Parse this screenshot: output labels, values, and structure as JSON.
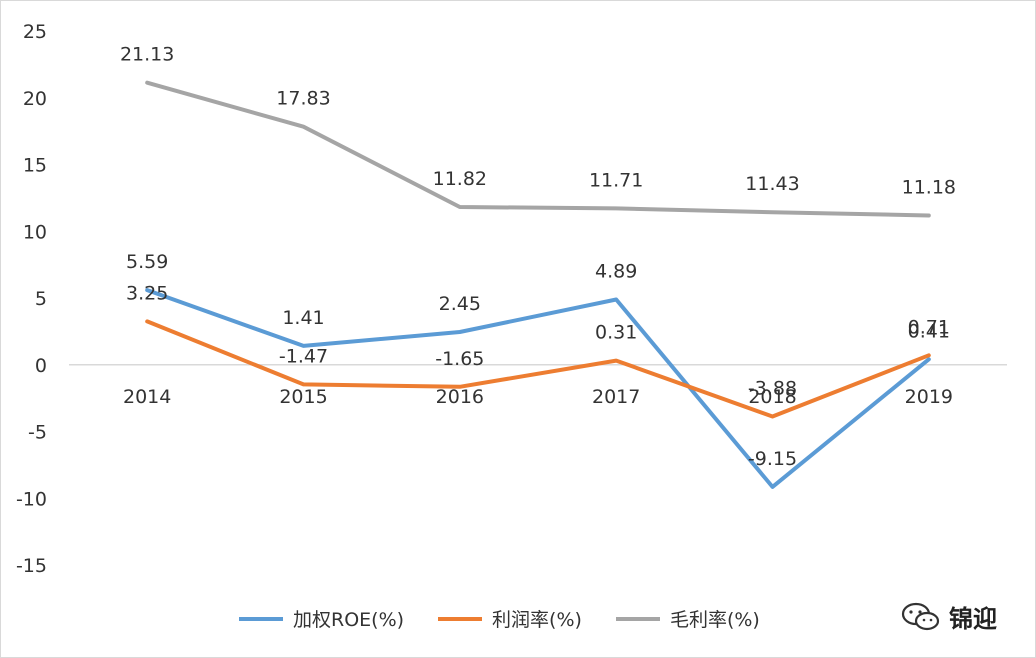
{
  "chart_data": {
    "type": "line",
    "categories": [
      "2014",
      "2015",
      "2016",
      "2017",
      "2018",
      "2019"
    ],
    "series": [
      {
        "name": "加权ROE(%)",
        "color": "#5b9bd5",
        "values": [
          5.59,
          1.41,
          2.45,
          4.89,
          -9.15,
          0.41
        ],
        "labels": [
          "5.59",
          "1.41",
          "2.45",
          "4.89",
          "-9.15",
          "0.41"
        ]
      },
      {
        "name": "利润率(%)",
        "color": "#ed7d31",
        "values": [
          3.25,
          -1.47,
          -1.65,
          0.31,
          -3.88,
          0.71
        ],
        "labels": [
          "3.25",
          "-1.47",
          "-1.65",
          "0.31",
          "-3.88",
          "0.71"
        ]
      },
      {
        "name": "毛利率(%)",
        "color": "#a5a5a5",
        "values": [
          21.13,
          17.83,
          11.82,
          11.71,
          11.43,
          11.18
        ],
        "labels": [
          "21.13",
          "17.83",
          "11.82",
          "11.71",
          "11.43",
          "11.18"
        ]
      }
    ],
    "yticks": [
      "25",
      "20",
      "15",
      "10",
      "5",
      "0",
      "-5",
      "-10",
      "-15"
    ],
    "ylim": [
      -15,
      25
    ],
    "grid": false,
    "legend_position": "bottom"
  },
  "watermark": {
    "icon": "wechat-icon",
    "text": "锦迎"
  }
}
